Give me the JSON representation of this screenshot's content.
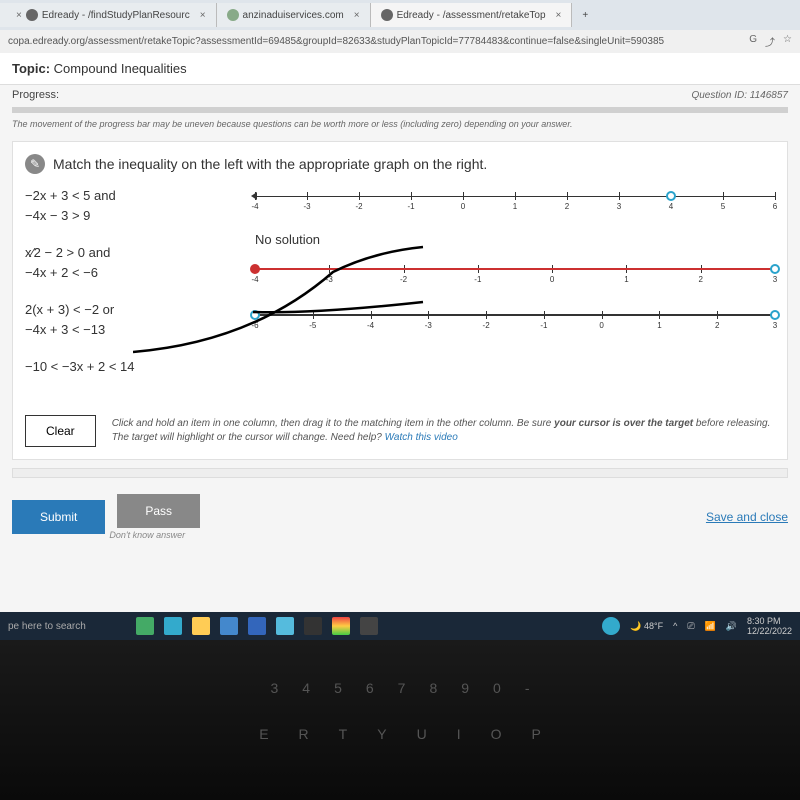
{
  "tabs": [
    {
      "title": "Edready - /findStudyPlanResourc",
      "icon": "#555"
    },
    {
      "title": "anzinaduiservices.com",
      "icon": "#8a8"
    },
    {
      "title": "Edready - /assessment/retakeTop",
      "icon": "#555",
      "active": true
    }
  ],
  "url": "copa.edready.org/assessment/retakeTopic?assessmentId=69485&groupId=82633&studyPlanTopicId=77784483&continue=false&singleUnit=590385",
  "topic_label": "Topic:",
  "topic_value": "Compound Inequalities",
  "progress_label": "Progress:",
  "question_id": "Question ID: 1146857",
  "progress_note": "The movement of the progress bar may be uneven because questions can be worth more or less (including zero) depending on your answer.",
  "question_text": "Match the inequality on the left with the appropriate graph on the right.",
  "inequalities": [
    {
      "line1": "−2x + 3 < 5 and",
      "line2": "−4x − 3 > 9"
    },
    {
      "line1": "x⁄2 − 2 > 0 and",
      "line2": "−4x + 2 < −6"
    },
    {
      "line1": "2(x + 3) < −2 or",
      "line2": "−4x + 3 < −13"
    },
    {
      "line1": "−10 < −3x + 2 < 14",
      "line2": ""
    }
  ],
  "no_solution": "No solution",
  "graph1": {
    "min": -4,
    "max": 6,
    "ticks": [
      -4,
      -3,
      -2,
      -1,
      0,
      1,
      2,
      3,
      4,
      5,
      6
    ],
    "point_at": 4,
    "point_style": "open"
  },
  "graph2": {
    "min": -4,
    "max": 3,
    "ticks": [
      -4,
      -3,
      -2,
      -1,
      0,
      1,
      2,
      3
    ],
    "seg_from": -4,
    "seg_to": 3,
    "left_point": "filled",
    "right_point": "open"
  },
  "graph3": {
    "min": -6,
    "max": 3,
    "ticks": [
      -6,
      -5,
      -4,
      -3,
      -2,
      -1,
      0,
      1,
      2,
      3
    ],
    "seg_from": -6,
    "seg_to": 3,
    "left_point": "open_blue",
    "right_point": "open_blue"
  },
  "clear_btn": "Clear",
  "clear_text1": "Click and hold an item in one column, then drag it to the matching item in the other column. Be sure ",
  "clear_bold": "your cursor is over the target",
  "clear_text2": " before releasing. The target will highlight or the cursor will change. Need help? ",
  "clear_link": "Watch this video",
  "submit": "Submit",
  "pass": "Pass",
  "pass_note": "Don't know answer",
  "save_close": "Save and close",
  "tb_search": "pe here to search",
  "weather": "48°F",
  "time": "8:30 PM",
  "date": "12/22/2022",
  "key_row1": [
    "3",
    "4",
    "5",
    "6",
    "7",
    "8",
    "9",
    "0",
    "-"
  ],
  "key_row2": [
    "E",
    "R",
    "T",
    "Y",
    "U",
    "I",
    "O",
    "P"
  ],
  "colors": {
    "accent": "#2a7ab8",
    "point_open": "#2aa3cc",
    "point_filled": "#cc3030",
    "taskbar": "#1a2838"
  }
}
